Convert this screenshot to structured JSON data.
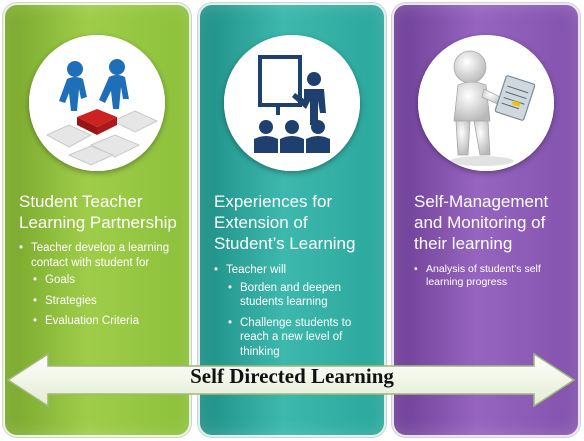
{
  "panels": [
    {
      "title": "Student Teacher Learning Partnership",
      "bullet": "Teacher develop a learning contact with student for",
      "subbullets": [
        "Goals",
        "Strategies",
        "Evaluation Criteria"
      ]
    },
    {
      "title": "Experiences for Extension of Student’s Learning",
      "bullet": "Teacher will",
      "subbullets": [
        "Borden and deepen students learning",
        "Challenge students to reach a new level of thinking"
      ]
    },
    {
      "title": "Self-Management and Monitoring of their learning",
      "bullet": "Analysis of student’s self learning progress"
    }
  ],
  "arrow": {
    "label": "Self Directed Learning"
  },
  "icons": [
    "puzzle-partnership-icon",
    "presentation-audience-icon",
    "figure-with-clipboard-icon"
  ],
  "colors": {
    "green": "#8cc03a",
    "teal": "#2aa79c",
    "purple": "#8252ad",
    "arrow_fill": "#f2f7e8"
  }
}
